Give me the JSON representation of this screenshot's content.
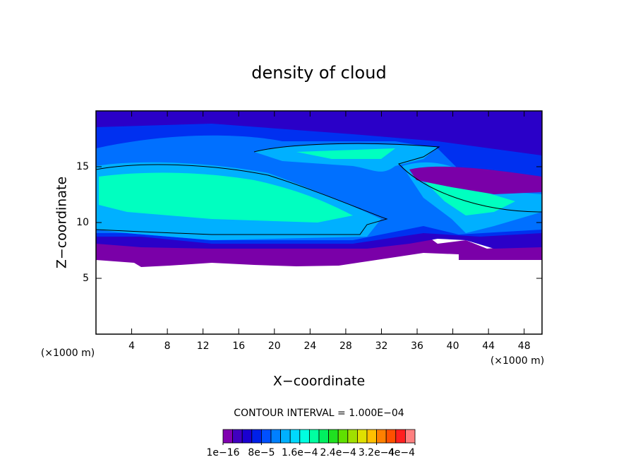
{
  "chart_data": {
    "type": "contour",
    "title": "density of cloud",
    "x_label": "X−coordinate",
    "y_label": "Z−coordinate",
    "x_unit_label": "(×1000 m)",
    "y_unit_label": "(×1000 m)",
    "xlim": [
      0,
      50
    ],
    "xticks": [
      4,
      8,
      12,
      16,
      20,
      24,
      28,
      32,
      36,
      40,
      44,
      48
    ],
    "ylim": [
      0,
      20
    ],
    "yticks": [
      5,
      10,
      15
    ],
    "annotation": "CONTOUR INTERVAL = 1.000E−04",
    "colorbar": {
      "clim": [
        0,
        0.0004
      ],
      "colors": [
        "#8000b0",
        "#4000c0",
        "#1a00d0",
        "#0020e8",
        "#0050ff",
        "#0080ff",
        "#00b0ff",
        "#00d8ff",
        "#00ffe0",
        "#00ffa0",
        "#00f060",
        "#20e020",
        "#60e000",
        "#a0e000",
        "#e0e000",
        "#ffc000",
        "#ff8000",
        "#ff5000",
        "#ff2020",
        "#ff8080"
      ],
      "ticks": [
        {
          "value": 1e-16,
          "label": "1e−16"
        },
        {
          "value": 8e-05,
          "label": "8e−5"
        },
        {
          "value": 0.00016,
          "label": "1.6e−4"
        },
        {
          "value": 0.00024,
          "label": "2.4e−4"
        },
        {
          "value": 0.00032,
          "label": "3.2e−4"
        },
        {
          "value": 0.0004,
          "label": "4e−4"
        }
      ]
    }
  }
}
